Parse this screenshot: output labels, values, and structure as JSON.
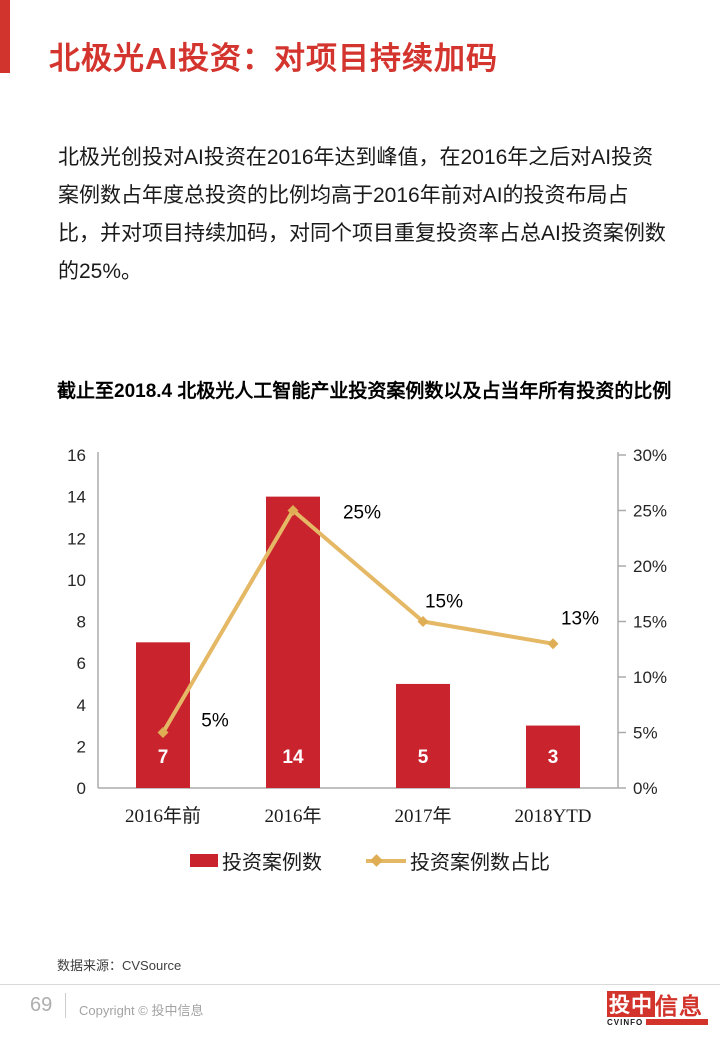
{
  "colors": {
    "accent_red": "#d0342c",
    "title_red": "#d3342d",
    "bar_red": "#c9242e",
    "line_gold": "#e5b866",
    "marker_gold": "#dfae54",
    "axis_gray": "#ababab"
  },
  "header": {
    "title": "北极光AI投资：对项目持续加码"
  },
  "body": {
    "paragraph": "北极光创投对AI投资在2016年达到峰值，在2016年之后对AI投资案例数占年度总投资的比例均高于2016年前对AI的投资布局占比，并对项目持续加码，对同个项目重复投资率占总AI投资案例数的25%。"
  },
  "chart": {
    "title": "截止至2018.4 北极光人工智能产业投资案例数以及占当年所有投资的比例",
    "source": "数据来源：CVSource"
  },
  "chart_data": {
    "type": "bar+line combo (dual axis)",
    "categories": [
      "2016年前",
      "2016年",
      "2017年",
      "2018YTD"
    ],
    "series": [
      {
        "name": "投资案例数",
        "type": "bar",
        "axis": "left",
        "values": [
          7,
          14,
          5,
          3
        ],
        "data_labels": [
          "7",
          "14",
          "5",
          "3"
        ],
        "color": "#c9242e"
      },
      {
        "name": "投资案例数占比",
        "type": "line",
        "axis": "right",
        "values": [
          5,
          25,
          15,
          13
        ],
        "data_labels": [
          "5%",
          "25%",
          "15%",
          "13%"
        ],
        "color": "#e5b866",
        "marker": "diamond"
      }
    ],
    "left_axis": {
      "min": 0,
      "max": 16,
      "step": 2,
      "ticks": [
        "0",
        "2",
        "4",
        "6",
        "8",
        "10",
        "12",
        "14",
        "16"
      ]
    },
    "right_axis": {
      "min": 0,
      "max": 30,
      "step": 5,
      "ticks": [
        "0%",
        "5%",
        "10%",
        "15%",
        "20%",
        "25%",
        "30%"
      ]
    },
    "grid": false,
    "legend_position": "bottom"
  },
  "footer": {
    "page_number": "69",
    "copyright": "Copyright © 投中信息",
    "logo": {
      "red_box_text": "投中",
      "red_text": "信息",
      "subtitle": "CVINFO"
    }
  }
}
